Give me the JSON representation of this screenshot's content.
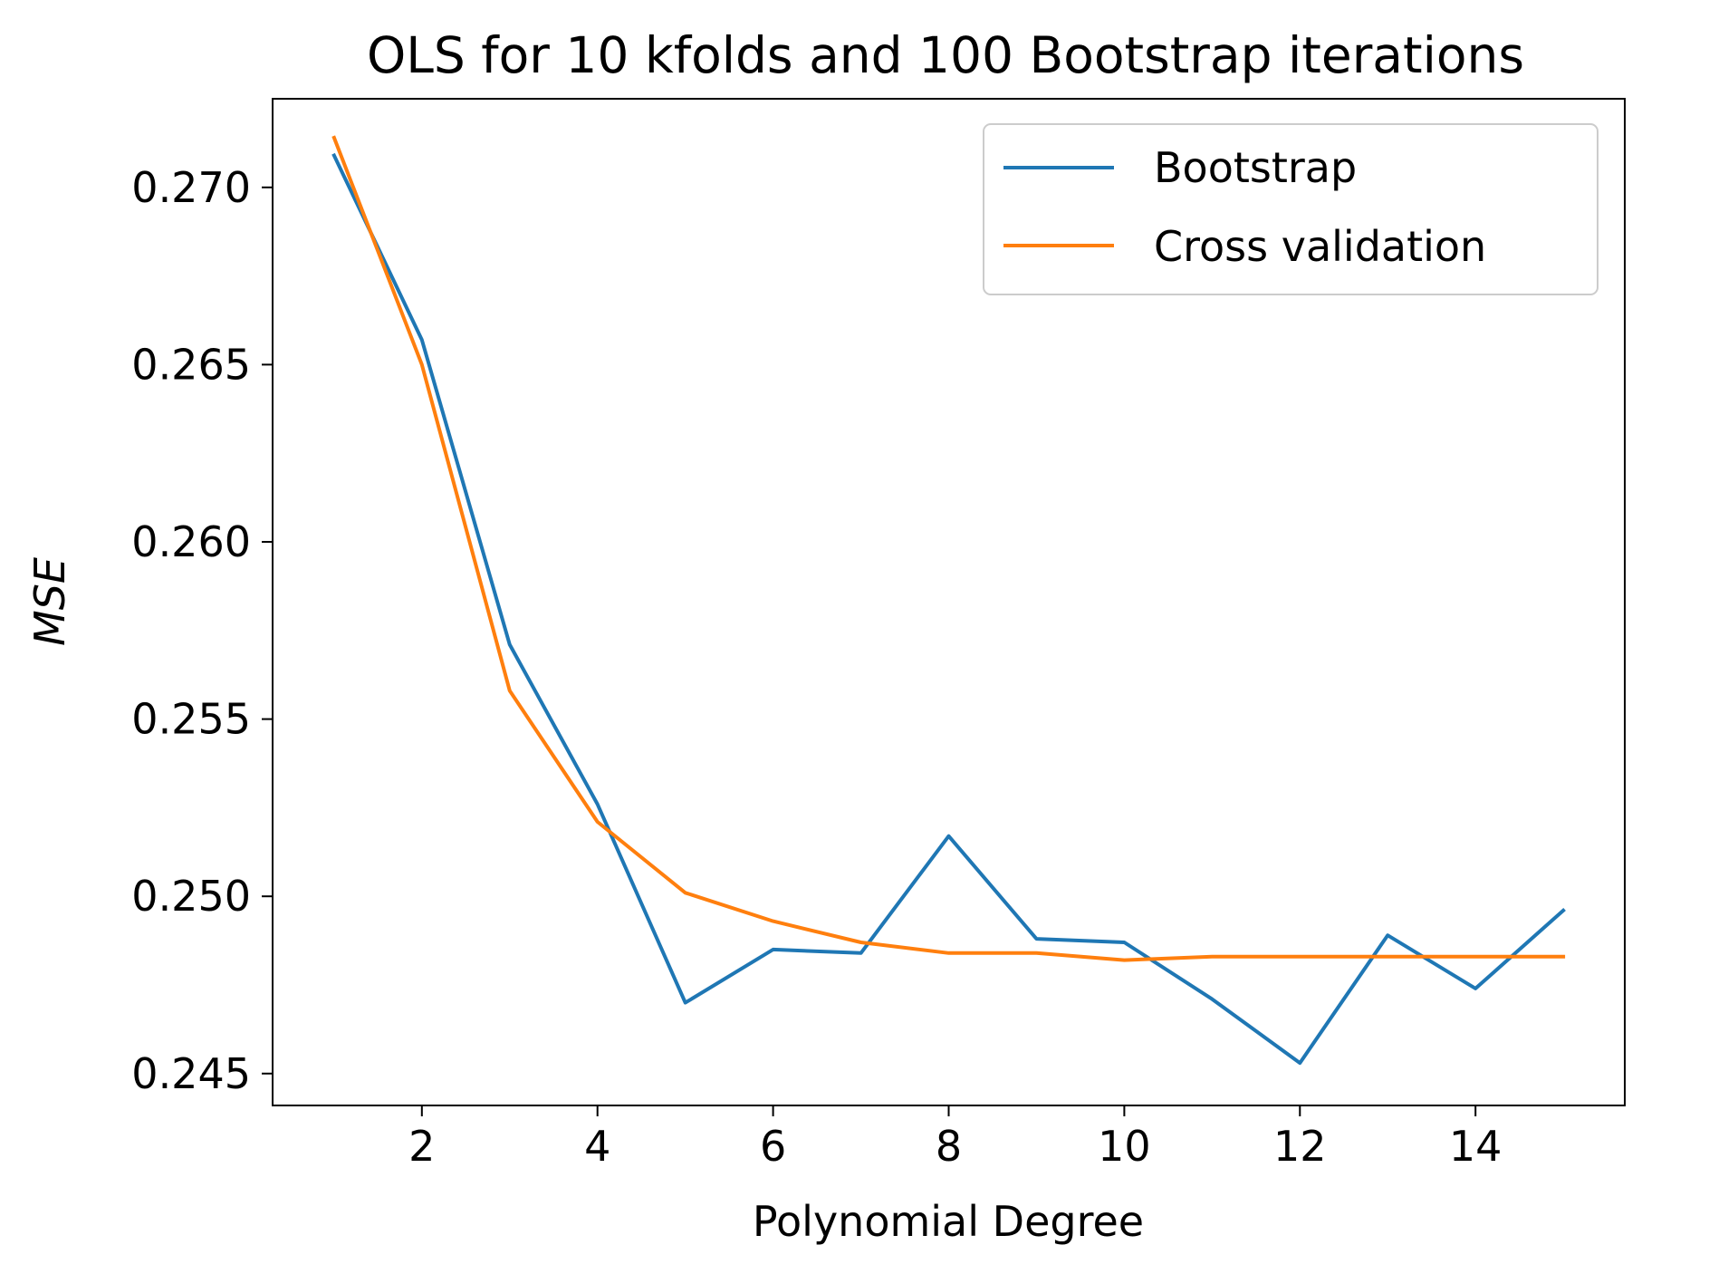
{
  "chart_data": {
    "type": "line",
    "title": "OLS for 10 kfolds and 100 Bootstrap iterations",
    "xlabel": "Polynomial Degree",
    "ylabel": "MSE",
    "x": [
      1,
      2,
      3,
      4,
      5,
      6,
      7,
      8,
      9,
      10,
      11,
      12,
      13,
      14,
      15
    ],
    "xlim": [
      0.3,
      15.7
    ],
    "ylim": [
      0.2441,
      0.2725
    ],
    "xticks": [
      2,
      4,
      6,
      8,
      10,
      12,
      14
    ],
    "xtick_labels": [
      "2",
      "4",
      "6",
      "8",
      "10",
      "12",
      "14"
    ],
    "yticks": [
      0.245,
      0.25,
      0.255,
      0.26,
      0.265,
      0.27
    ],
    "ytick_labels": [
      "0.245",
      "0.250",
      "0.255",
      "0.260",
      "0.265",
      "0.270"
    ],
    "grid": false,
    "legend_position": "top-right",
    "series": [
      {
        "name": "Bootstrap",
        "color": "#1f77b4",
        "values": [
          0.2709,
          0.2657,
          0.2571,
          0.2526,
          0.247,
          0.2485,
          0.2484,
          0.2517,
          0.2488,
          0.2487,
          0.2471,
          0.2453,
          0.2489,
          0.2474,
          0.2496
        ]
      },
      {
        "name": "Cross validation",
        "color": "#ff7f0e",
        "values": [
          0.2714,
          0.265,
          0.2558,
          0.2521,
          0.2501,
          0.2493,
          0.2487,
          0.2484,
          0.2484,
          0.2482,
          0.2483,
          0.2483,
          0.2483,
          0.2483,
          0.2483
        ]
      }
    ]
  }
}
